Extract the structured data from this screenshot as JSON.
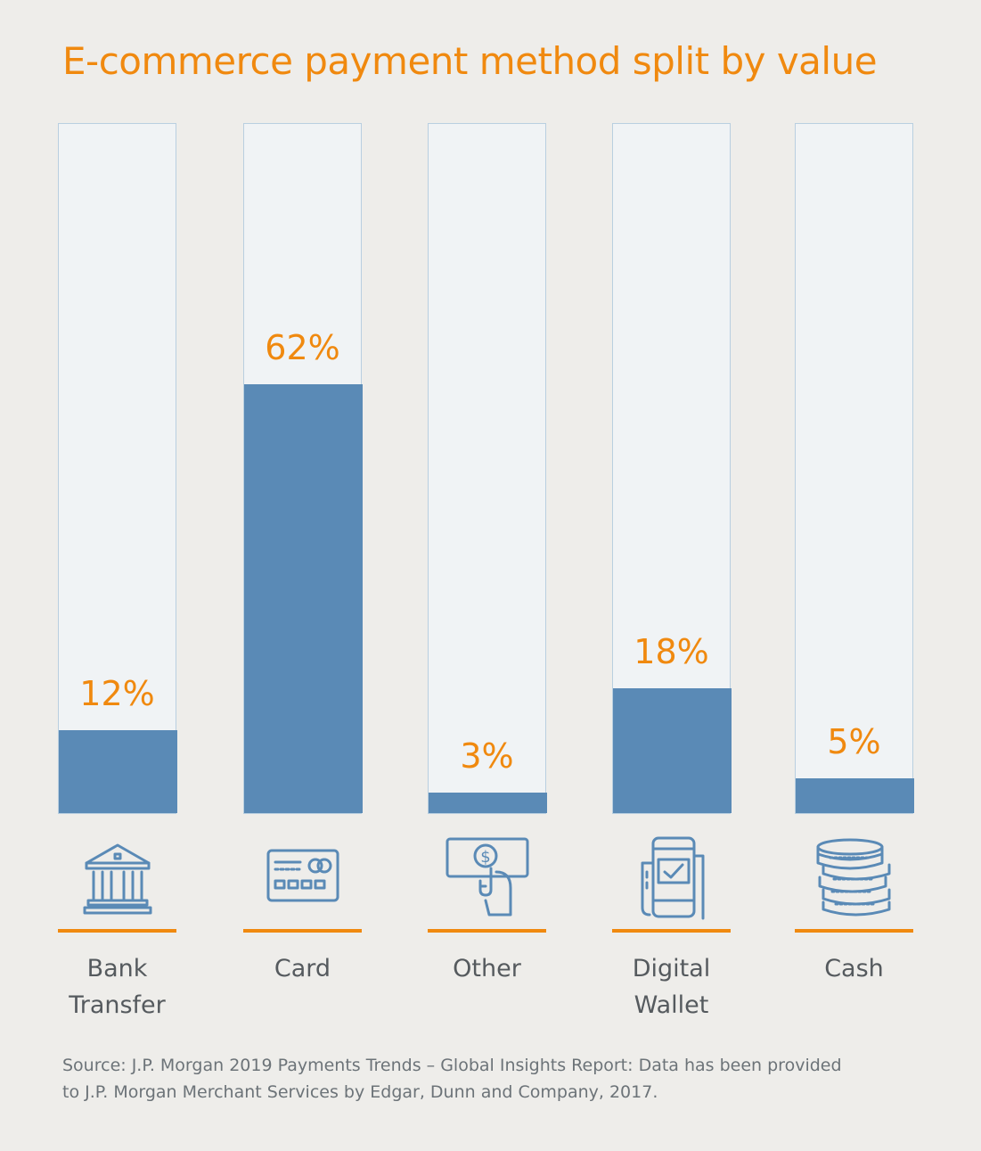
{
  "title": "E-commerce payment method split by value",
  "chart_data": {
    "type": "bar",
    "title": "E-commerce payment method split by value",
    "categories": [
      [
        "Bank",
        "Transfer"
      ],
      [
        "Card"
      ],
      [
        "Other"
      ],
      [
        "Digital",
        "Wallet"
      ],
      [
        "Cash"
      ]
    ],
    "values": [
      12,
      62,
      3,
      18,
      5
    ],
    "value_labels": [
      "12%",
      "62%",
      "3%",
      "18%",
      "5%"
    ],
    "ylim": [
      0,
      100
    ],
    "unit": "%",
    "icons": [
      "bank-icon",
      "card-icon",
      "hand-cash-icon",
      "mobile-wallet-icon",
      "coins-icon"
    ]
  },
  "colors": {
    "accent": "#f0890f",
    "bar": "#5a8ab6",
    "track": "#f0f3f5",
    "background": "#eeedea"
  },
  "source": {
    "line1": "Source: J.P. Morgan 2019 Payments Trends – Global Insights Report: Data has been provided",
    "line2": "to J.P. Morgan Merchant Services by Edgar, Dunn and Company, 2017."
  }
}
